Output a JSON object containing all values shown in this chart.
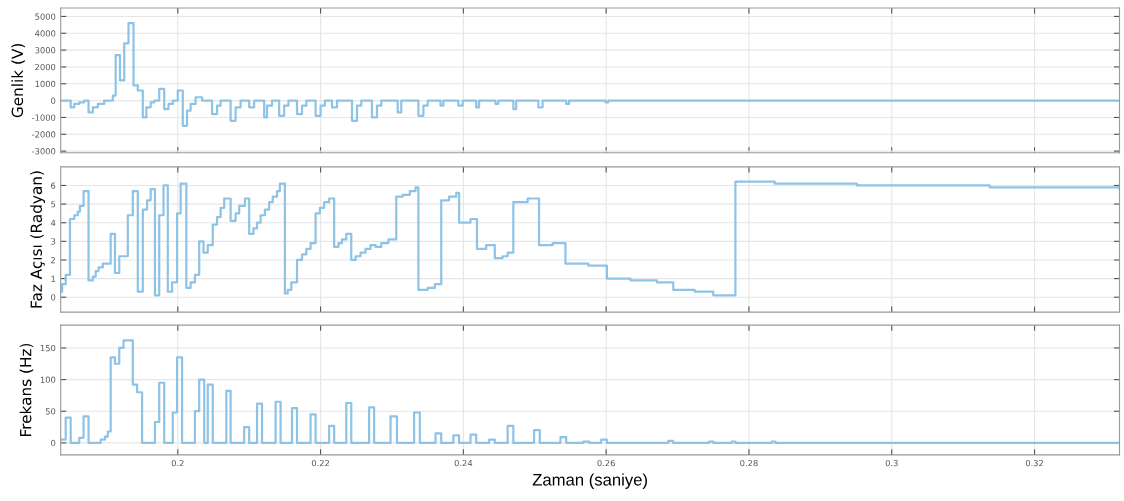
{
  "chart_data": [
    {
      "type": "step",
      "ylabel": "Genlik (V)",
      "color": "#8fc3e6",
      "grid": true,
      "tick_labels": "y",
      "xlim": [
        0.1836,
        0.3319
      ],
      "ylim": [
        -3100,
        5500
      ],
      "xticks": [
        0.2,
        0.22,
        0.24,
        0.26,
        0.28,
        0.3,
        0.32
      ],
      "yticks": [
        -3000,
        -2000,
        -1000,
        0,
        1000,
        2000,
        3000,
        4000,
        5000
      ],
      "x": [
        0.1836,
        0.185,
        0.1855,
        0.1862,
        0.1869,
        0.1875,
        0.1881,
        0.1888,
        0.1897,
        0.1909,
        0.1913,
        0.1919,
        0.1925,
        0.1931,
        0.1938,
        0.1944,
        0.1951,
        0.1956,
        0.1962,
        0.1967,
        0.1974,
        0.1981,
        0.1987,
        0.1993,
        0.2,
        0.2007,
        0.2013,
        0.2018,
        0.2025,
        0.2034,
        0.2048,
        0.2055,
        0.206,
        0.2074,
        0.2081,
        0.2088,
        0.21,
        0.2107,
        0.2121,
        0.2125,
        0.2132,
        0.2142,
        0.2149,
        0.2155,
        0.2167,
        0.2174,
        0.218,
        0.2193,
        0.22,
        0.2206,
        0.2216,
        0.2223,
        0.2244,
        0.2251,
        0.2257,
        0.2272,
        0.2279,
        0.2285,
        0.2308,
        0.2313,
        0.2337,
        0.2344,
        0.235,
        0.2368,
        0.2372,
        0.2393,
        0.2399,
        0.2418,
        0.2422,
        0.2445,
        0.2449,
        0.247,
        0.2474,
        0.2505,
        0.2511,
        0.2544,
        0.2548,
        0.2599,
        0.2603,
        0.3319
      ],
      "values": [
        0,
        -400,
        -200,
        -100,
        0,
        -700,
        -400,
        -200,
        0,
        300,
        2700,
        1200,
        3400,
        4600,
        900,
        600,
        -1000,
        -400,
        -100,
        0,
        700,
        -500,
        -200,
        0,
        600,
        -1500,
        -600,
        -200,
        200,
        0,
        -800,
        -300,
        0,
        -1200,
        -400,
        0,
        -400,
        0,
        -1000,
        -300,
        0,
        -900,
        -300,
        0,
        -800,
        -300,
        0,
        -900,
        -300,
        0,
        -400,
        0,
        -1200,
        -300,
        0,
        -1000,
        -300,
        0,
        -700,
        0,
        -900,
        -300,
        0,
        -300,
        0,
        -300,
        0,
        -400,
        0,
        -200,
        0,
        -500,
        0,
        -400,
        0,
        -200,
        0,
        -100,
        0,
        0
      ]
    },
    {
      "type": "step",
      "ylabel": "Faz Açısı (Radyan)",
      "color": "#8fc3e6",
      "grid": true,
      "tick_labels": "y",
      "xlim": [
        0.1836,
        0.3319
      ],
      "ylim": [
        -0.8,
        7
      ],
      "xticks": [
        0.2,
        0.22,
        0.24,
        0.26,
        0.28,
        0.3,
        0.32
      ],
      "yticks": [
        0,
        1,
        2,
        3,
        4,
        5,
        6
      ],
      "x": [
        0.1836,
        0.1838,
        0.1843,
        0.1849,
        0.1855,
        0.186,
        0.1863,
        0.1868,
        0.1875,
        0.1881,
        0.1885,
        0.1889,
        0.1895,
        0.1906,
        0.1912,
        0.1918,
        0.193,
        0.1937,
        0.1944,
        0.1951,
        0.1957,
        0.1962,
        0.1968,
        0.1974,
        0.198,
        0.1986,
        0.1992,
        0.1999,
        0.2004,
        0.2012,
        0.2018,
        0.2024,
        0.203,
        0.2036,
        0.2042,
        0.2049,
        0.2055,
        0.206,
        0.2065,
        0.2074,
        0.2081,
        0.2086,
        0.2094,
        0.21,
        0.2106,
        0.2111,
        0.2116,
        0.2122,
        0.2128,
        0.2133,
        0.2139,
        0.2143,
        0.215,
        0.2154,
        0.2159,
        0.2167,
        0.2174,
        0.218,
        0.2186,
        0.2193,
        0.2199,
        0.2205,
        0.2212,
        0.2219,
        0.2225,
        0.223,
        0.2236,
        0.2243,
        0.2249,
        0.2256,
        0.2263,
        0.227,
        0.2277,
        0.2285,
        0.2295,
        0.2306,
        0.2315,
        0.2325,
        0.2333,
        0.2337,
        0.235,
        0.236,
        0.2369,
        0.238,
        0.239,
        0.2394,
        0.241,
        0.2419,
        0.2432,
        0.2444,
        0.2455,
        0.2462,
        0.247,
        0.249,
        0.2506,
        0.2525,
        0.2543,
        0.2575,
        0.2601,
        0.2634,
        0.2671,
        0.2694,
        0.2724,
        0.275,
        0.2781,
        0.2836,
        0.2951,
        0.3137,
        0.3319
      ],
      "values": [
        0.3,
        0.7,
        1.2,
        4.2,
        4.4,
        4.6,
        4.9,
        5.7,
        0.9,
        1.1,
        1.4,
        1.6,
        1.8,
        3.4,
        1.3,
        2.2,
        4.4,
        5.7,
        0.3,
        4.7,
        5.2,
        5.8,
        0.1,
        4.4,
        6.0,
        0.3,
        0.8,
        4.5,
        6.1,
        0.5,
        0.8,
        1.2,
        3.0,
        2.4,
        2.8,
        3.9,
        4.3,
        4.8,
        5.3,
        4.1,
        4.5,
        4.9,
        5.3,
        3.4,
        3.7,
        4.0,
        4.4,
        4.7,
        5.1,
        5.4,
        5.7,
        6.1,
        0.2,
        0.4,
        0.8,
        2.0,
        2.3,
        2.6,
        2.9,
        4.5,
        4.8,
        5.1,
        5.3,
        2.7,
        2.9,
        3.1,
        3.4,
        2.0,
        2.2,
        2.4,
        2.6,
        2.8,
        2.7,
        2.9,
        3.1,
        5.4,
        5.5,
        5.7,
        5.9,
        0.4,
        0.5,
        0.7,
        5.2,
        5.4,
        5.6,
        4.0,
        4.2,
        2.6,
        2.8,
        2.1,
        2.2,
        2.4,
        5.1,
        5.3,
        2.8,
        2.9,
        1.8,
        1.7,
        1.0,
        0.9,
        0.8,
        0.4,
        0.3,
        0.1,
        6.2,
        6.1,
        6.0,
        5.9,
        5.8
      ]
    },
    {
      "type": "step",
      "ylabel": "Frekans (Hz)",
      "xlabel": "Zaman (saniye)",
      "color": "#8fc3e6",
      "grid": true,
      "xlim": [
        0.1836,
        0.3319
      ],
      "ylim": [
        -19,
        186
      ],
      "xticks": [
        0.2,
        0.22,
        0.24,
        0.26,
        0.28,
        0.3,
        0.32
      ],
      "yticks": [
        0,
        50,
        100,
        150
      ],
      "x": [
        0.1836,
        0.1843,
        0.185,
        0.1862,
        0.1868,
        0.1875,
        0.1892,
        0.1898,
        0.1902,
        0.1906,
        0.1912,
        0.1918,
        0.1924,
        0.1937,
        0.1943,
        0.195,
        0.1968,
        0.1974,
        0.1981,
        0.1993,
        0.1999,
        0.2006,
        0.2024,
        0.203,
        0.2037,
        0.2042,
        0.2049,
        0.2068,
        0.2074,
        0.2093,
        0.21,
        0.2111,
        0.2118,
        0.2137,
        0.2144,
        0.216,
        0.2167,
        0.2186,
        0.2193,
        0.2212,
        0.2219,
        0.2236,
        0.2243,
        0.2268,
        0.2275,
        0.2298,
        0.2307,
        0.2331,
        0.2339,
        0.2361,
        0.2369,
        0.2386,
        0.2394,
        0.241,
        0.2418,
        0.2436,
        0.2444,
        0.2462,
        0.247,
        0.2499,
        0.2507,
        0.2536,
        0.2544,
        0.2568,
        0.2576,
        0.2593,
        0.2601,
        0.2687,
        0.2694,
        0.2744,
        0.275,
        0.2776,
        0.2781,
        0.2832,
        0.2837,
        0.3319
      ],
      "values": [
        5,
        40,
        0,
        8,
        42,
        0,
        5,
        10,
        18,
        135,
        125,
        150,
        162,
        92,
        80,
        0,
        33,
        95,
        0,
        48,
        135,
        0,
        50,
        100,
        0,
        92,
        0,
        82,
        0,
        25,
        0,
        62,
        0,
        65,
        0,
        55,
        0,
        45,
        0,
        27,
        0,
        63,
        0,
        56,
        0,
        42,
        0,
        48,
        0,
        15,
        0,
        12,
        0,
        13,
        0,
        5,
        0,
        27,
        0,
        20,
        0,
        9,
        0,
        2,
        0,
        5,
        0,
        3,
        0,
        2,
        0,
        2,
        0,
        2,
        0,
        0
      ]
    }
  ]
}
